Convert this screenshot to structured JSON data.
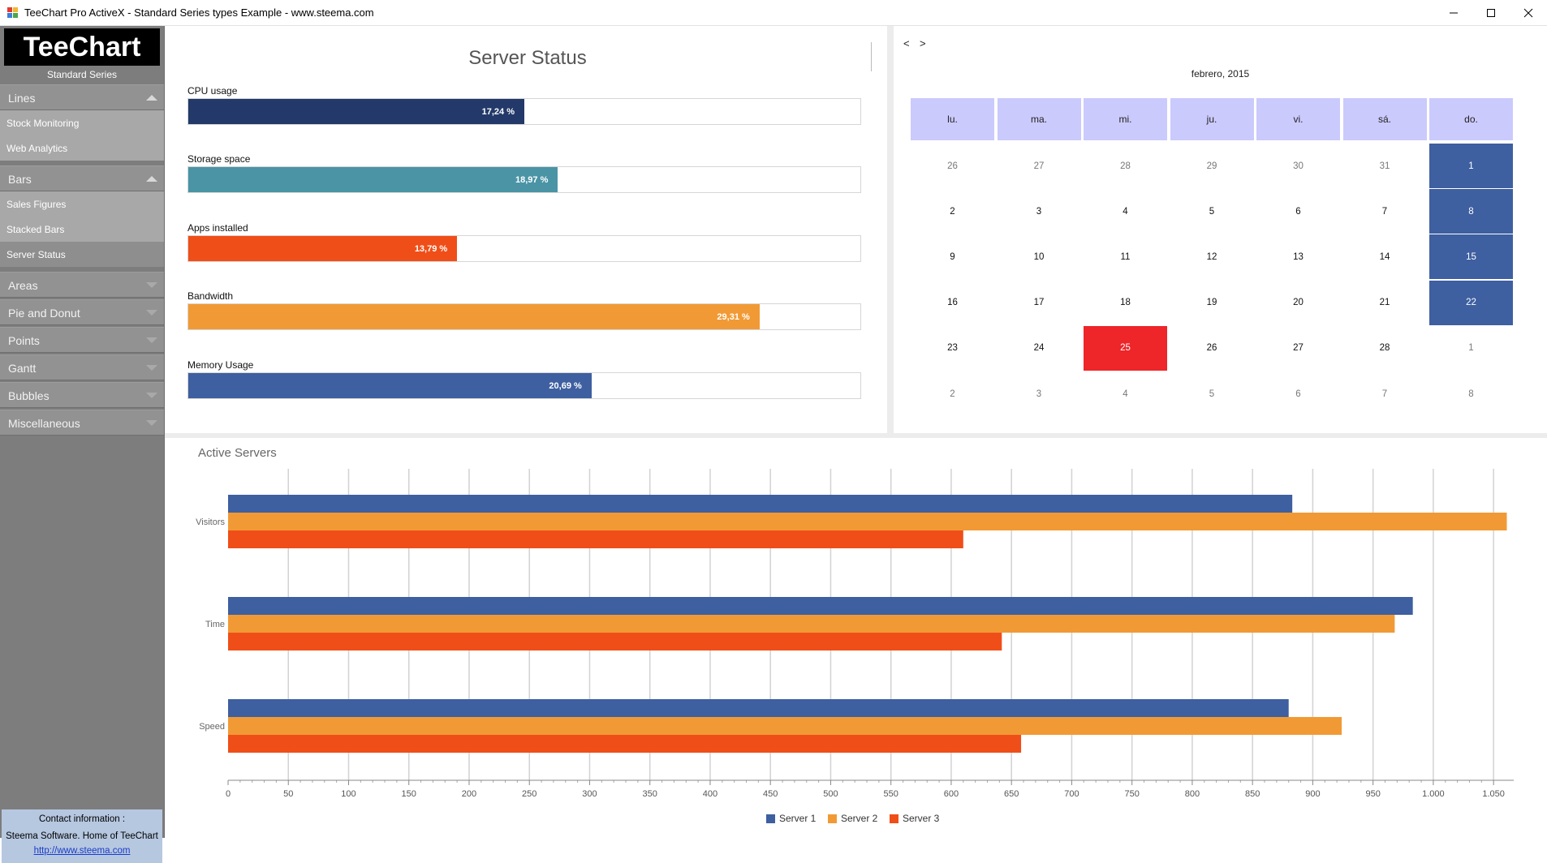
{
  "window": {
    "title": "TeeChart Pro ActiveX - Standard Series types Example - www.steema.com",
    "app_icon": "teechart-app-icon"
  },
  "sidebar": {
    "logo_text": "TeeChart",
    "logo_subtitle": "Standard Series",
    "groups": [
      {
        "label": "Lines",
        "expanded": true,
        "items": [
          "Stock Monitoring",
          "Web Analytics"
        ]
      },
      {
        "label": "Bars",
        "expanded": true,
        "items": [
          "Sales Figures",
          "Stacked Bars",
          "Server Status"
        ]
      },
      {
        "label": "Areas",
        "expanded": false
      },
      {
        "label": "Pie and Donut",
        "expanded": false
      },
      {
        "label": "Points",
        "expanded": false
      },
      {
        "label": "Gantt",
        "expanded": false
      },
      {
        "label": "Bubbles",
        "expanded": false
      },
      {
        "label": "Miscellaneous",
        "expanded": false
      }
    ],
    "selected_item": "Server Status",
    "contact": {
      "heading": "Contact information :",
      "company": "Steema Software. Home of TeeChart",
      "link": "http://www.steema.com"
    }
  },
  "status": {
    "title": "Server Status",
    "gauges": [
      {
        "label": "CPU usage",
        "value_text": "17,24 %",
        "fill_fraction": 0.5,
        "color": "#233969"
      },
      {
        "label": "Storage space",
        "value_text": "18,97 %",
        "fill_fraction": 0.55,
        "color": "#4a94a6"
      },
      {
        "label": "Apps installed",
        "value_text": "13,79 %",
        "fill_fraction": 0.4,
        "color": "#f04e18"
      },
      {
        "label": "Bandwidth",
        "value_text": "29,31 %",
        "fill_fraction": 0.85,
        "color": "#f19a35"
      },
      {
        "label": "Memory Usage",
        "value_text": "20,69 %",
        "fill_fraction": 0.6,
        "color": "#3e5fa0"
      }
    ]
  },
  "calendar": {
    "prev_label": "<",
    "next_label": ">",
    "month_label": "febrero, 2015",
    "weekdays": [
      "lu.",
      "ma.",
      "mi.",
      "ju.",
      "vi.",
      "sá.",
      "do."
    ],
    "weeks": [
      [
        "26",
        "27",
        "28",
        "29",
        "30",
        "31",
        "1"
      ],
      [
        "2",
        "3",
        "4",
        "5",
        "6",
        "7",
        "8"
      ],
      [
        "9",
        "10",
        "11",
        "12",
        "13",
        "14",
        "15"
      ],
      [
        "16",
        "17",
        "18",
        "19",
        "20",
        "21",
        "22"
      ],
      [
        "23",
        "24",
        "25",
        "26",
        "27",
        "28",
        "1"
      ],
      [
        "2",
        "3",
        "4",
        "5",
        "6",
        "7",
        "8"
      ]
    ],
    "current_month_rows": [
      [
        false,
        false,
        false,
        false,
        false,
        false,
        true
      ],
      [
        true,
        true,
        true,
        true,
        true,
        true,
        true
      ],
      [
        true,
        true,
        true,
        true,
        true,
        true,
        true
      ],
      [
        true,
        true,
        true,
        true,
        true,
        true,
        true
      ],
      [
        true,
        true,
        true,
        true,
        true,
        true,
        false
      ],
      [
        false,
        false,
        false,
        false,
        false,
        false,
        false
      ]
    ],
    "today": "25",
    "colors": {
      "header": "#cbcafd",
      "weekend": "#3e5fa0",
      "today": "#ee2529"
    }
  },
  "chart_data": {
    "type": "bar",
    "orientation": "horizontal",
    "title": "Active Servers",
    "categories": [
      "Visitors",
      "Time",
      "Speed"
    ],
    "series": [
      {
        "name": "Server 1",
        "color": "#3e5fa0",
        "values": [
          883,
          983,
          880
        ]
      },
      {
        "name": "Server 2",
        "color": "#f19a35",
        "values": [
          1061,
          968,
          924
        ]
      },
      {
        "name": "Server 3",
        "color": "#f04e18",
        "values": [
          610,
          642,
          658
        ]
      }
    ],
    "xlim": [
      0,
      1060
    ],
    "x_ticks": [
      "0",
      "50",
      "100",
      "150",
      "200",
      "250",
      "300",
      "350",
      "400",
      "450",
      "500",
      "550",
      "600",
      "650",
      "700",
      "750",
      "800",
      "850",
      "900",
      "950",
      "1.000",
      "1.050"
    ],
    "grid": true,
    "legend_position": "bottom"
  }
}
